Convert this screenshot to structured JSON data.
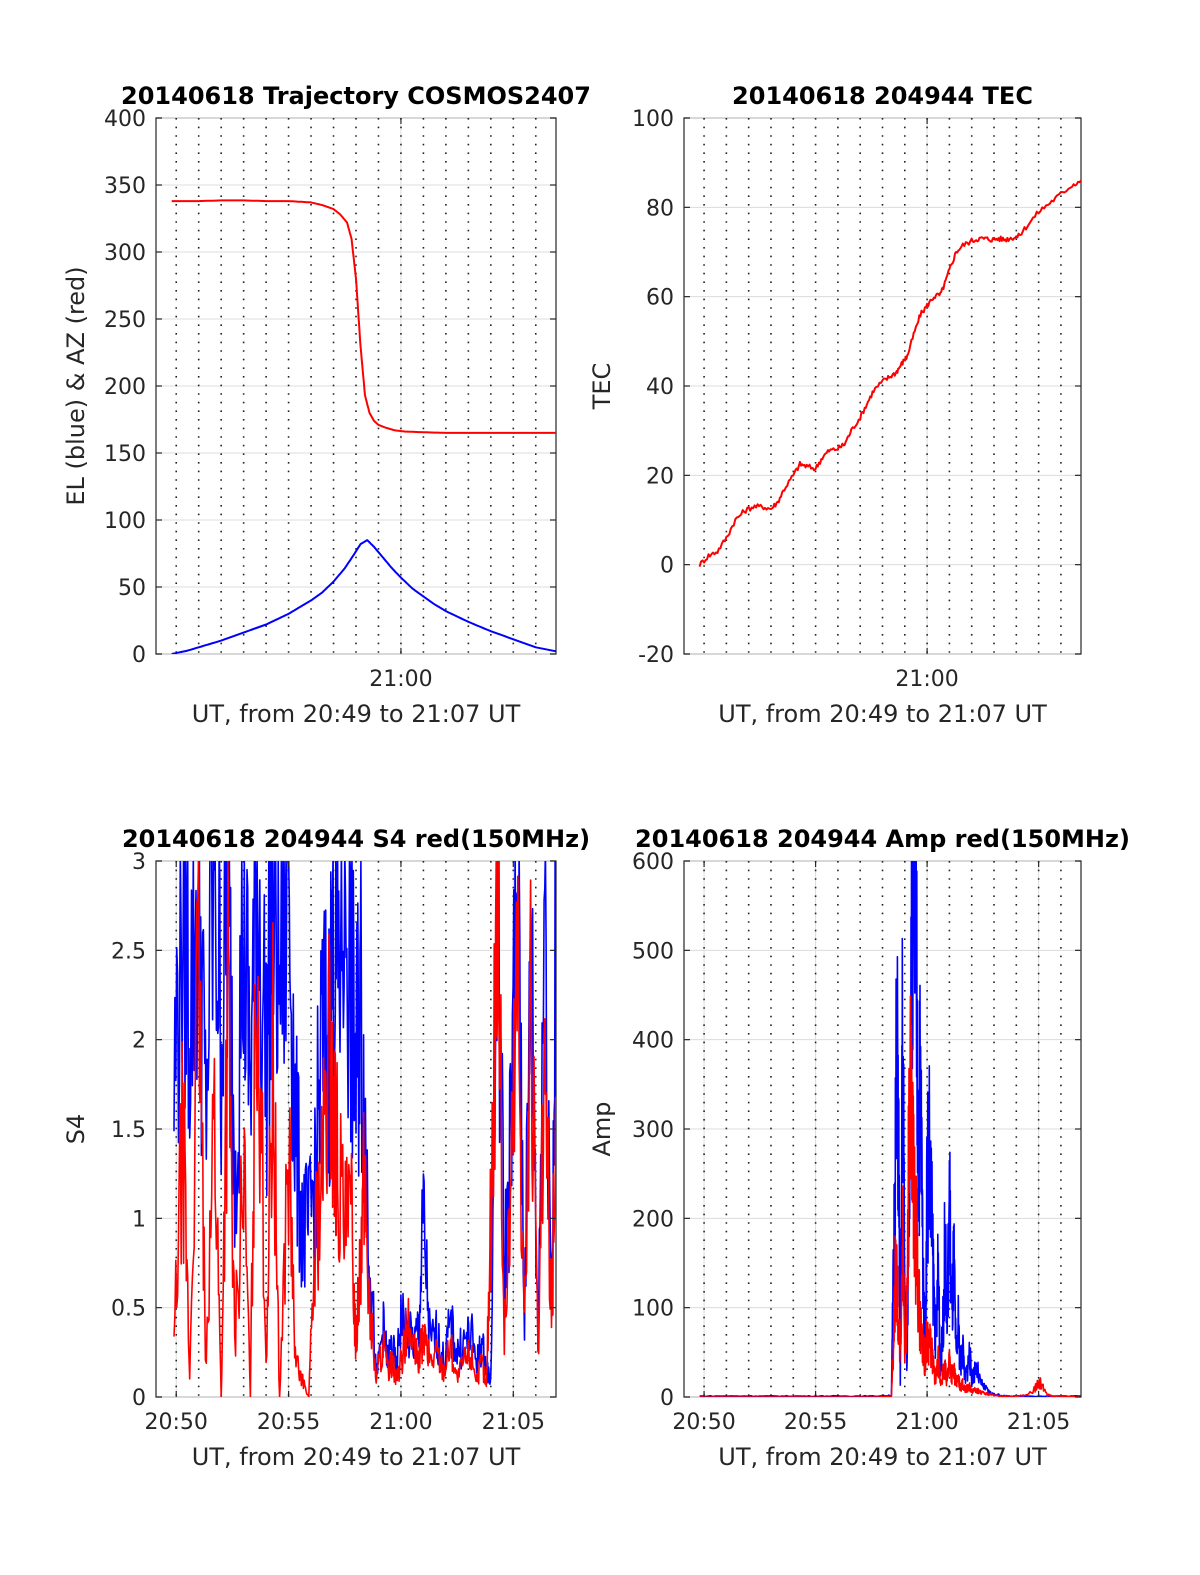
{
  "chart_data": [
    {
      "type": "line",
      "title": "20140618 Trajectory COSMOS2407",
      "xlabel": "UT, from 20:49 to 21:07 UT",
      "ylabel": "EL (blue) & AZ (red)",
      "xlim_min": [
        49.1,
        66.9
      ],
      "ylim": [
        0,
        400
      ],
      "yticks": [
        0,
        50,
        100,
        150,
        200,
        250,
        300,
        350,
        400
      ],
      "xtick_labels": [
        {
          "x": 60,
          "label": "21:00"
        }
      ],
      "grid": true,
      "minor_grid_min": [
        50,
        51,
        52,
        53,
        54,
        55,
        56,
        57,
        58,
        59,
        60,
        61,
        62,
        63,
        64,
        65,
        66
      ],
      "series": [
        {
          "color": "#ff0000",
          "x": [
            49.8,
            51,
            52,
            53,
            54,
            55,
            55.5,
            56,
            56.5,
            57,
            57.3,
            57.6,
            57.8,
            58.0,
            58.2,
            58.4,
            58.6,
            58.8,
            59,
            59.3,
            59.7,
            60.2,
            61,
            62,
            63,
            64,
            65,
            66,
            66.9
          ],
          "values": [
            338,
            338,
            338.5,
            338.5,
            338,
            338,
            337.5,
            337,
            335,
            332,
            328,
            322,
            310,
            280,
            230,
            193,
            180,
            174,
            171,
            169,
            167,
            166,
            165.5,
            165,
            165,
            165,
            165,
            165,
            165
          ]
        },
        {
          "color": "#0000ff",
          "x": [
            49.8,
            50.5,
            51,
            52,
            53,
            54,
            54.5,
            55,
            55.5,
            56,
            56.5,
            57,
            57.5,
            57.9,
            58.2,
            58.5,
            58.8,
            59.2,
            59.6,
            60,
            60.5,
            61,
            61.5,
            62,
            63,
            64,
            65,
            66,
            66.9
          ],
          "values": [
            0,
            2.5,
            5,
            10,
            16,
            22,
            26,
            30,
            35,
            40,
            46,
            54,
            64,
            74,
            82,
            85,
            80,
            72,
            64,
            57,
            49,
            43,
            37,
            32,
            24,
            17,
            11,
            5,
            2
          ]
        }
      ]
    },
    {
      "type": "line",
      "title": "20140618 204944 TEC",
      "xlabel": "UT, from 20:49 to 21:07 UT",
      "ylabel": "TEC",
      "xlim_min": [
        49.1,
        66.9
      ],
      "ylim": [
        -20,
        100
      ],
      "yticks": [
        -20,
        0,
        20,
        40,
        60,
        80,
        100
      ],
      "xtick_labels": [
        {
          "x": 60,
          "label": "21:00"
        }
      ],
      "grid": true,
      "minor_grid_min": [
        50,
        51,
        52,
        53,
        54,
        55,
        56,
        57,
        58,
        59,
        60,
        61,
        62,
        63,
        64,
        65,
        66
      ],
      "series": [
        {
          "color": "#ff0000",
          "x": [
            49.8,
            50.2,
            50.6,
            51,
            51.4,
            51.8,
            52.2,
            52.6,
            53,
            53.3,
            53.6,
            54,
            54.3,
            54.6,
            55,
            55.3,
            55.6,
            56,
            56.3,
            56.6,
            57,
            57.3,
            57.6,
            58,
            58.3,
            58.6,
            58.8,
            59,
            59.1,
            59.4,
            59.7,
            60,
            60.3,
            60.6,
            60.8,
            61,
            61.3,
            61.6,
            62,
            62.3,
            62.6,
            62.9,
            63.2,
            63.5,
            63.8,
            64.1,
            64.5,
            65,
            65.5,
            66,
            66.5,
            66.9
          ],
          "values": [
            0,
            2,
            3,
            6,
            10,
            12,
            13,
            13,
            12.5,
            14,
            17,
            20,
            22.5,
            22,
            21.5,
            24,
            25.5,
            26,
            27,
            30,
            33,
            36,
            39,
            41,
            42,
            43,
            44.5,
            46,
            46.5,
            51.5,
            56,
            58,
            60,
            60.5,
            63,
            66,
            70,
            71.5,
            72.5,
            73,
            73,
            72.8,
            73,
            72.8,
            73.2,
            73.5,
            76,
            79,
            81,
            83,
            85,
            86
          ]
        }
      ]
    },
    {
      "type": "line",
      "title": "20140618 204944 S4 red(150MHz)",
      "xlabel": "UT, from 20:49 to 21:07 UT",
      "ylabel": "S4",
      "xlim_min": [
        49.1,
        66.9
      ],
      "ylim": [
        0,
        3
      ],
      "yticks": [
        "0",
        "0.5",
        "1",
        "1.5",
        "2",
        "2.5",
        "3"
      ],
      "xtick_labels": [
        {
          "x": 50,
          "label": "20:50"
        },
        {
          "x": 55,
          "label": "20:55"
        },
        {
          "x": 60,
          "label": "21:00"
        },
        {
          "x": 65,
          "label": "21:05"
        }
      ],
      "grid": true,
      "minor_grid_min": [
        50,
        51,
        52,
        53,
        54,
        55,
        56,
        57,
        58,
        59,
        60,
        61,
        62,
        63,
        64,
        65,
        66
      ],
      "series": [
        {
          "color": "#0000ff",
          "x": [
            49.9,
            50.3,
            50.6,
            51,
            51.3,
            51.7,
            52,
            52.3,
            52.6,
            53,
            53.3,
            53.6,
            54,
            54.3,
            54.6,
            55,
            55.3,
            55.6,
            55.9,
            56.2,
            56.5,
            56.8,
            57.0,
            57.2,
            57.5,
            57.8,
            58.0,
            58.2,
            58.4,
            58.6,
            58.9,
            59.2,
            59.4,
            59.6,
            59.8,
            60.0,
            60.3,
            60.6,
            60.8,
            61,
            61.3,
            61.6,
            61.9,
            62.2,
            62.5,
            62.8,
            63.1,
            63.4,
            63.6,
            63.8,
            64.0,
            64.3,
            64.6,
            64.9,
            65.2,
            65.5,
            65.8,
            66.1,
            66.4,
            66.7,
            66.9
          ],
          "values": [
            1.7,
            3,
            2.2,
            2.9,
            1.6,
            3,
            2.1,
            2.8,
            1.4,
            2.6,
            1.8,
            3,
            1.9,
            2.9,
            2.4,
            3,
            1.5,
            1.0,
            0.9,
            1.3,
            2.0,
            1.95,
            2.7,
            2.4,
            3,
            2.2,
            1.8,
            2.3,
            1.5,
            0.9,
            0.1,
            0.4,
            0.2,
            0.3,
            0.15,
            0.45,
            0.35,
            0.3,
            0.4,
            1.0,
            0.3,
            0.35,
            0.2,
            0.4,
            0.25,
            0.3,
            0.35,
            0.2,
            0.3,
            0.15,
            0.1,
            3,
            0.7,
            1.5,
            3,
            0.5,
            2.5,
            0.3,
            3,
            0.5,
            2.6
          ]
        },
        {
          "color": "#ff0000",
          "x": [
            49.9,
            50.3,
            50.6,
            51,
            51.3,
            51.7,
            52,
            52.3,
            52.6,
            53,
            53.3,
            53.6,
            54,
            54.3,
            54.6,
            55,
            55.3,
            55.6,
            55.9,
            56.2,
            56.5,
            56.8,
            57.0,
            57.2,
            57.5,
            57.8,
            58.0,
            58.2,
            58.4,
            58.6,
            58.9,
            59.2,
            59.4,
            59.6,
            59.8,
            60.0,
            60.3,
            60.6,
            60.8,
            61,
            61.3,
            61.6,
            61.9,
            62.2,
            62.5,
            62.8,
            63.1,
            63.4,
            63.6,
            63.8,
            64.0,
            64.3,
            64.6,
            64.9,
            65.2,
            65.5,
            65.8,
            66.1,
            66.4,
            66.7,
            66.9
          ],
          "values": [
            0.3,
            1.5,
            0.1,
            2.5,
            0.2,
            1.6,
            0,
            2.2,
            0.3,
            1.3,
            0,
            2.7,
            0.2,
            1.9,
            0,
            1.4,
            0.2,
            0.1,
            0,
            0.9,
            1.2,
            1.9,
            1.5,
            1.3,
            0.9,
            1.0,
            0.3,
            0.9,
            1.2,
            0.5,
            0.1,
            0.3,
            0.15,
            0.2,
            0.1,
            0.2,
            0.4,
            0.25,
            0.2,
            0.35,
            0.2,
            0.25,
            0.15,
            0.3,
            0.1,
            0.2,
            0.25,
            0.1,
            0.2,
            0.05,
            1.0,
            3,
            0.3,
            1.2,
            2.5,
            0.4,
            2.2,
            0.2,
            1.8,
            0.4,
            1.6
          ]
        }
      ]
    },
    {
      "type": "line",
      "title": "20140618 204944 Amp red(150MHz)",
      "xlabel": "UT, from 20:49 to 21:07 UT",
      "ylabel": "Amp",
      "xlim_min": [
        49.1,
        66.9
      ],
      "ylim": [
        0,
        600
      ],
      "yticks": [
        0,
        100,
        200,
        300,
        400,
        500,
        600
      ],
      "xtick_labels": [
        {
          "x": 50,
          "label": "20:50"
        },
        {
          "x": 55,
          "label": "20:55"
        },
        {
          "x": 60,
          "label": "21:00"
        },
        {
          "x": 65,
          "label": "21:05"
        }
      ],
      "grid": true,
      "minor_grid_min": [
        50,
        51,
        52,
        53,
        54,
        55,
        56,
        57,
        58,
        59,
        60,
        61,
        62,
        63,
        64,
        65,
        66
      ],
      "series": [
        {
          "color": "#0000ff",
          "x": [
            49.8,
            51,
            52,
            53,
            54,
            55,
            56,
            57,
            57.8,
            58.4,
            58.5,
            58.6,
            58.7,
            58.8,
            58.9,
            59.0,
            59.1,
            59.2,
            59.3,
            59.4,
            59.5,
            59.6,
            59.7,
            59.8,
            59.9,
            60.0,
            60.1,
            60.2,
            60.3,
            60.4,
            60.5,
            60.6,
            60.7,
            60.8,
            60.9,
            61.0,
            61.1,
            61.2,
            61.3,
            61.4,
            61.5,
            61.6,
            61.7,
            61.8,
            61.9,
            62.0,
            62.2,
            62.4,
            62.6,
            62.8,
            63.0,
            63.3,
            63.6,
            64,
            65,
            66,
            66.9
          ],
          "values": [
            1,
            1,
            1,
            1,
            1,
            1,
            1,
            1,
            1,
            2,
            150,
            330,
            360,
            10,
            420,
            120,
            30,
            290,
            480,
            570,
            520,
            300,
            350,
            180,
            40,
            250,
            270,
            200,
            120,
            60,
            150,
            30,
            70,
            170,
            80,
            230,
            90,
            150,
            40,
            80,
            30,
            60,
            20,
            30,
            50,
            20,
            35,
            15,
            10,
            5,
            3,
            2,
            1,
            1,
            1,
            1,
            1
          ]
        },
        {
          "color": "#ff0000",
          "x": [
            49.8,
            51,
            52,
            53,
            54,
            55,
            56,
            57,
            57.8,
            58.4,
            58.5,
            58.6,
            58.7,
            58.8,
            58.9,
            59.0,
            59.1,
            59.2,
            59.3,
            59.4,
            59.5,
            59.6,
            59.7,
            59.8,
            59.9,
            60.0,
            60.1,
            60.2,
            60.3,
            60.4,
            60.5,
            60.6,
            60.7,
            60.8,
            60.9,
            61.0,
            61.1,
            61.2,
            61.3,
            61.4,
            61.5,
            61.6,
            61.7,
            61.8,
            61.9,
            62.0,
            62.2,
            62.4,
            62.6,
            62.8,
            63.0,
            63.3,
            63.6,
            64,
            64.5,
            64.8,
            65,
            65.2,
            65.4,
            65.6,
            66,
            66.9
          ],
          "values": [
            0,
            0,
            0,
            0,
            0,
            0,
            0,
            0,
            0,
            1,
            70,
            150,
            90,
            40,
            180,
            60,
            100,
            330,
            290,
            220,
            180,
            120,
            80,
            60,
            40,
            70,
            60,
            50,
            30,
            20,
            40,
            15,
            25,
            30,
            20,
            45,
            25,
            30,
            15,
            20,
            10,
            15,
            8,
            10,
            12,
            6,
            8,
            5,
            4,
            3,
            2,
            1,
            1,
            1,
            2,
            8,
            18,
            10,
            3,
            1,
            1,
            0
          ]
        }
      ]
    }
  ]
}
